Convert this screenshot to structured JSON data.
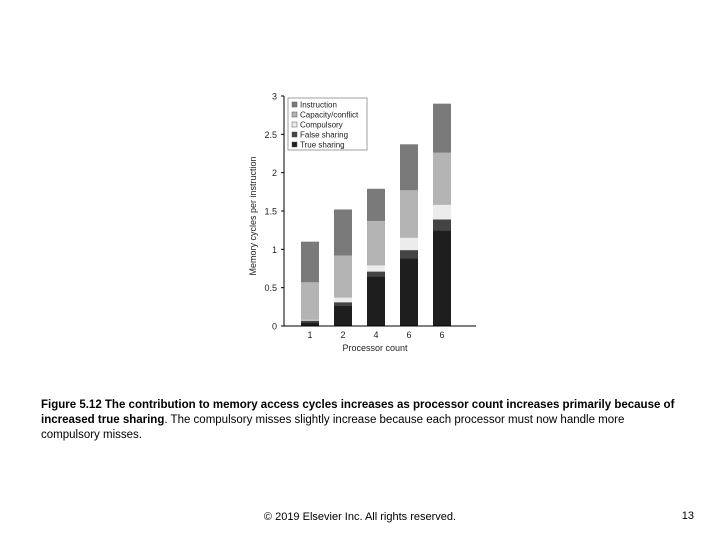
{
  "chart_data": {
    "type": "bar",
    "stacked": true,
    "categories": [
      "1",
      "2",
      "4",
      "6",
      "6"
    ],
    "xlabel": "Processor count",
    "ylabel": "Memory cycles per instruction",
    "ylim": [
      0,
      3
    ],
    "yticks": [
      "0",
      "0.5",
      "1",
      "1.5",
      "2",
      "2.5",
      "3"
    ],
    "legend_position": "top-left",
    "series": [
      {
        "name": "True sharing",
        "color": "#1e1e1e",
        "values": [
          0.05,
          0.27,
          0.65,
          0.88,
          1.25
        ]
      },
      {
        "name": "False sharing",
        "color": "#444444",
        "values": [
          0.02,
          0.04,
          0.06,
          0.11,
          0.14
        ]
      },
      {
        "name": "Compulsory",
        "color": "#ececec",
        "values": [
          0.01,
          0.06,
          0.08,
          0.16,
          0.19
        ]
      },
      {
        "name": "Capacity/conflict",
        "color": "#b4b4b4",
        "values": [
          0.49,
          0.55,
          0.58,
          0.62,
          0.68
        ]
      },
      {
        "name": "Instruction",
        "color": "#7a7a7a",
        "values": [
          0.53,
          0.6,
          0.42,
          0.6,
          0.64
        ]
      }
    ],
    "legend_order": [
      "Instruction",
      "Capacity/conflict",
      "Compulsory",
      "False sharing",
      "True sharing"
    ]
  },
  "caption": {
    "bold": "Figure 5.12 The contribution to memory access cycles increases as processor count increases primarily because of increased true sharing",
    "rest": ". The compulsory misses slightly increase because each processor must now handle more compulsory misses."
  },
  "footer": "© 2019 Elsevier Inc. All rights reserved.",
  "page_number": "13"
}
